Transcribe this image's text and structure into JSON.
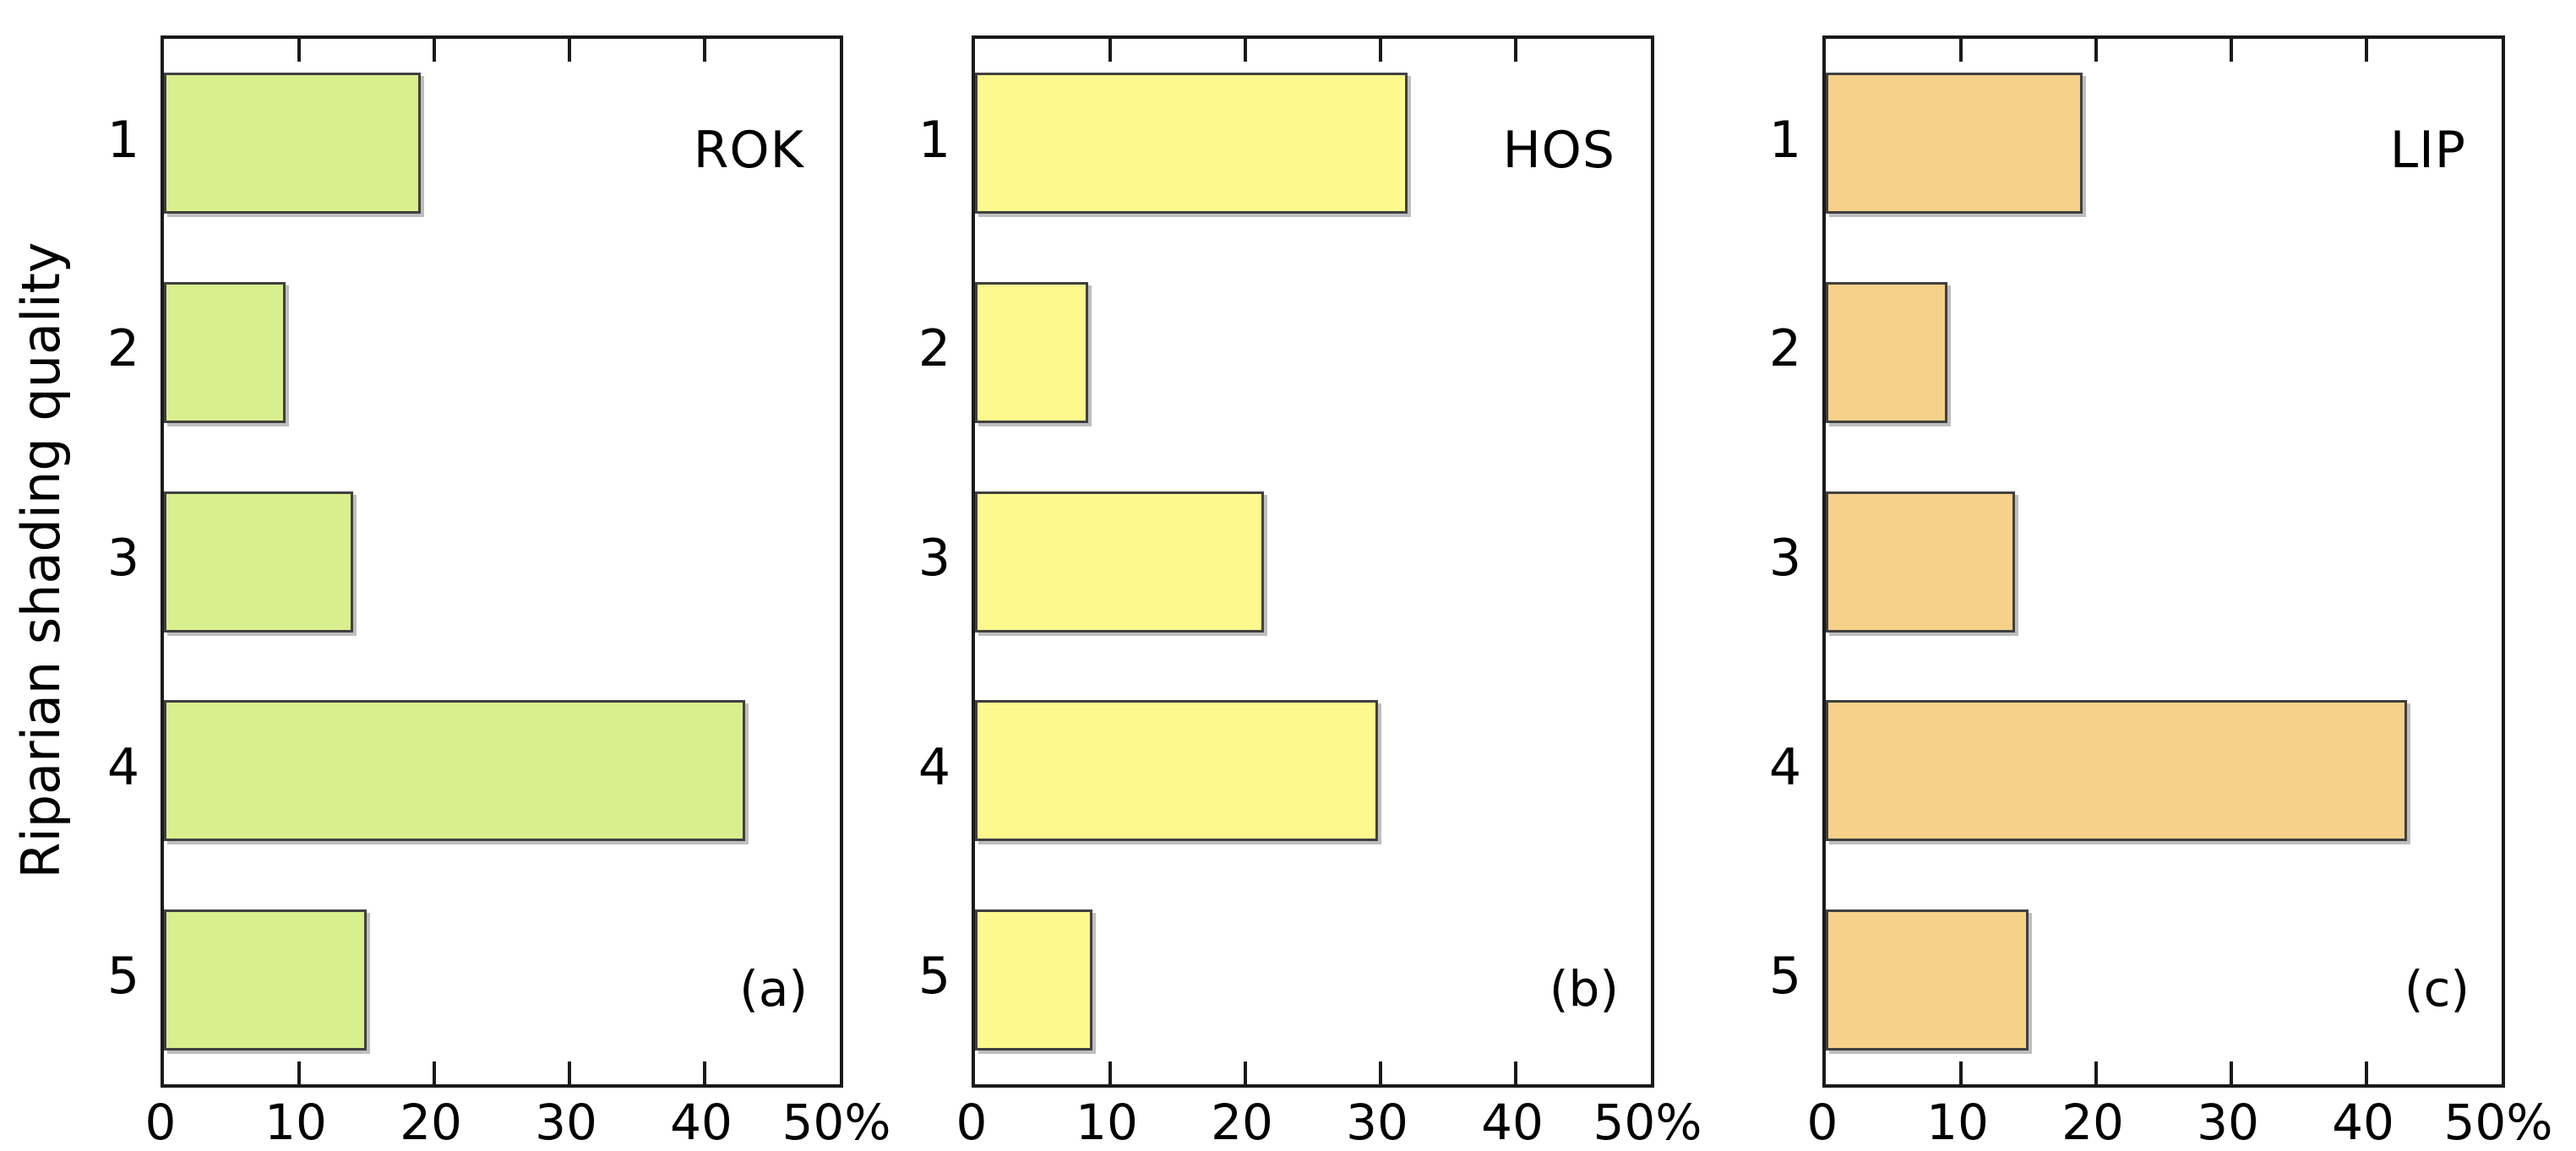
{
  "chart_data": {
    "type": "bar",
    "orientation": "horizontal",
    "title": "",
    "ylabel": "Riparian shading quality",
    "xlabel": "",
    "x_unit": "%",
    "xlim": [
      0,
      50
    ],
    "x_ticks": [
      0,
      10,
      20,
      30,
      40,
      50
    ],
    "x_tick_labels": [
      "0",
      "10",
      "20",
      "30",
      "40",
      "50%"
    ],
    "categories": [
      "1",
      "2",
      "3",
      "4",
      "5"
    ],
    "grid": false,
    "legend": "none",
    "panels": [
      {
        "code": "ROK",
        "panel_label": "(a)",
        "bar_color": "#d9ef8d",
        "values": [
          19,
          9,
          14,
          43,
          15
        ]
      },
      {
        "code": "HOS",
        "panel_label": "(b)",
        "bar_color": "#fdf98d",
        "values": [
          32,
          8.4,
          21.4,
          29.8,
          8.7
        ]
      },
      {
        "code": "LIP",
        "panel_label": "(c)",
        "bar_color": "#f6d189",
        "values": [
          19,
          9,
          14,
          43,
          15
        ]
      }
    ],
    "styles": {
      "bar_border_color": "#404040",
      "frame_color": "#1a1a1a",
      "text_color": "#000000",
      "background": "#ffffff"
    }
  }
}
